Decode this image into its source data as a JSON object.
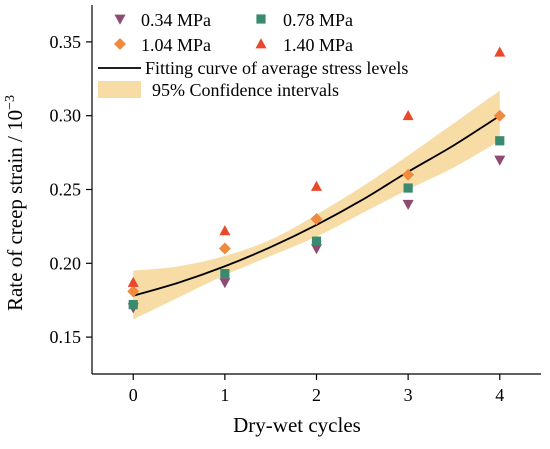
{
  "chart_data": {
    "type": "scatter",
    "xlabel": "Dry-wet cycles",
    "ylabel": "Rate of creep strain / 10",
    "ylabel_exponent": "−3",
    "x_ticks": [
      0,
      1,
      2,
      3,
      4
    ],
    "x_tick_labels": [
      "0",
      "1",
      "2",
      "3",
      "4"
    ],
    "y_ticks": [
      0.15,
      0.2,
      0.25,
      0.3,
      0.35
    ],
    "y_tick_labels": [
      "0.15",
      "0.20",
      "0.25",
      "0.30",
      "0.35"
    ],
    "xlim": [
      -0.45,
      4.45
    ],
    "ylim": [
      0.125,
      0.375
    ],
    "grid": false,
    "legend_position": "top-left",
    "series": [
      {
        "name": "0.34 MPa",
        "marker": "triangle-down",
        "color": "#8e4a73",
        "x": [
          0,
          1,
          2,
          3,
          4
        ],
        "y": [
          0.17,
          0.187,
          0.21,
          0.24,
          0.27
        ]
      },
      {
        "name": "0.78 MPa",
        "marker": "square",
        "color": "#3a8a70",
        "x": [
          0,
          1,
          2,
          3,
          4
        ],
        "y": [
          0.172,
          0.193,
          0.215,
          0.251,
          0.283
        ]
      },
      {
        "name": "1.04 MPa",
        "marker": "diamond",
        "color": "#f08a3c",
        "x": [
          0,
          1,
          2,
          3,
          4
        ],
        "y": [
          0.181,
          0.21,
          0.23,
          0.26,
          0.3
        ]
      },
      {
        "name": "1.40 MPa",
        "marker": "triangle-up",
        "color": "#e8492a",
        "x": [
          0,
          1,
          2,
          3,
          4
        ],
        "y": [
          0.187,
          0.222,
          0.252,
          0.3,
          0.343
        ]
      }
    ],
    "fit_curve": {
      "name": "Fitting curve of average stress levels",
      "color": "#000000",
      "x": [
        0,
        0.5,
        1,
        1.5,
        2,
        2.5,
        3,
        3.5,
        4
      ],
      "y": [
        0.178,
        0.187,
        0.198,
        0.211,
        0.226,
        0.243,
        0.262,
        0.28,
        0.3
      ]
    },
    "confidence_band": {
      "name": "95% Confidence intervals",
      "color": "#f7dca6",
      "x": [
        0,
        0.5,
        1,
        1.5,
        2,
        2.5,
        3,
        3.5,
        4
      ],
      "lower": [
        0.162,
        0.177,
        0.192,
        0.205,
        0.218,
        0.234,
        0.25,
        0.265,
        0.283
      ],
      "upper": [
        0.195,
        0.198,
        0.205,
        0.216,
        0.233,
        0.252,
        0.273,
        0.295,
        0.317
      ]
    }
  }
}
